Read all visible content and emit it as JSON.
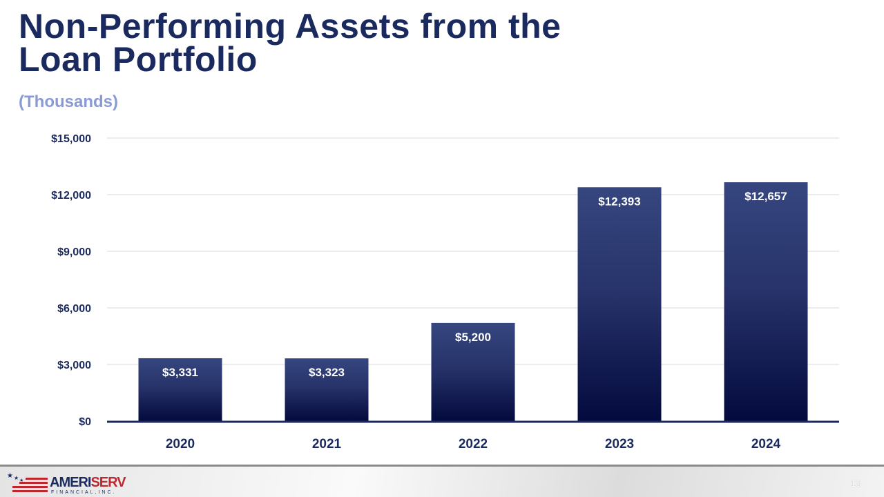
{
  "title_line1": "Non-Performing Assets from the",
  "title_line2": "Loan Portfolio",
  "subtitle": "(Thousands)",
  "page_number": "15",
  "logo": {
    "name": "AMERISERV",
    "tagline": "FINANCIAL, INC."
  },
  "chart_data": {
    "type": "bar",
    "title": "Non-Performing Assets from the Loan Portfolio",
    "subtitle": "(Thousands)",
    "categories": [
      "2020",
      "2021",
      "2022",
      "2023",
      "2024"
    ],
    "values": [
      3331,
      3323,
      5200,
      12393,
      12657
    ],
    "data_labels": [
      "$3,331",
      "$3,323",
      "$5,200",
      "$12,393",
      "$12,657"
    ],
    "ylim": [
      0,
      15000
    ],
    "yticks": [
      0,
      3000,
      6000,
      9000,
      12000,
      15000
    ],
    "ytick_labels": [
      "$0",
      "$3,000",
      "$6,000",
      "$9,000",
      "$12,000",
      "$15,000"
    ],
    "grid": true,
    "legend": "none",
    "colors": {
      "bar_top": "#36467f",
      "bar_bottom": "#030a3d",
      "axis": "#1b2a5e",
      "text": "#1b2a5e"
    }
  }
}
